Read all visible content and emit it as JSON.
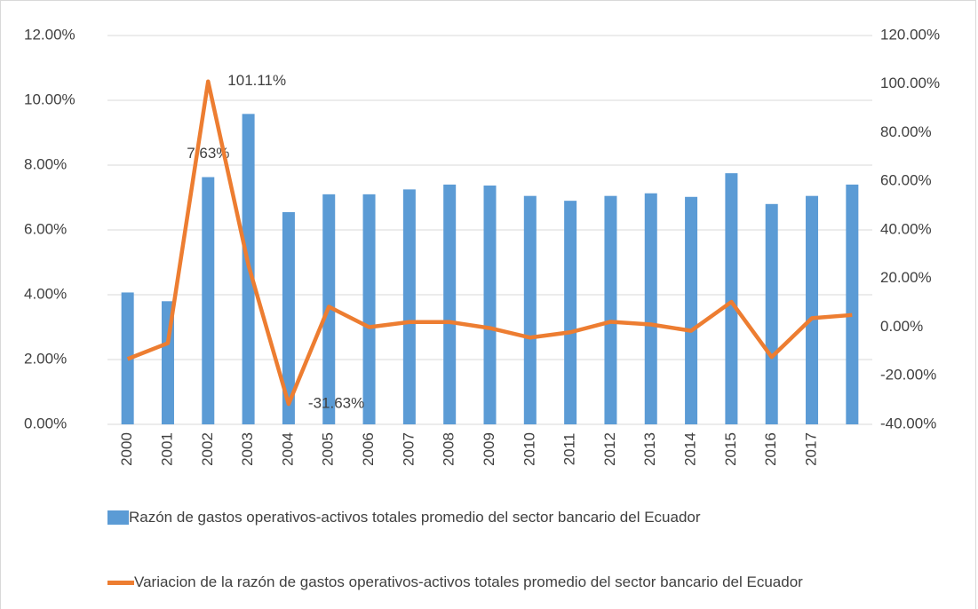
{
  "chart_data": {
    "type": "bar_line",
    "categories": [
      "2000",
      "2001",
      "2002",
      "2003",
      "2004",
      "2005",
      "2006",
      "2007",
      "2008",
      "2009",
      "2010",
      "2011",
      "2012",
      "2013",
      "2014",
      "2015",
      "2016",
      "2017",
      null
    ],
    "series": [
      {
        "name": "Razón de gastos operativos-activos totales promedio del sector bancario del Ecuador",
        "type": "bar",
        "color": "#5b9bd5",
        "values": [
          4.07,
          3.8,
          7.63,
          9.58,
          6.55,
          7.1,
          7.1,
          7.25,
          7.4,
          7.37,
          7.05,
          6.9,
          7.05,
          7.13,
          7.02,
          7.75,
          6.8,
          7.05,
          7.4
        ],
        "value_labels": [
          null,
          null,
          "7.63%",
          null,
          null,
          null,
          null,
          null,
          null,
          null,
          null,
          null,
          null,
          null,
          null,
          null,
          null,
          null,
          null
        ]
      },
      {
        "name": "Variacion de la razón de gastos operativos-activos totales promedio del sector bancario del Ecuador",
        "type": "line",
        "axis": "y2",
        "color": "#ed7d31",
        "values": [
          -13.1,
          -6.6,
          101.11,
          25.6,
          -31.63,
          8.4,
          0,
          2.1,
          2.1,
          -0.4,
          -4.3,
          -2.1,
          2.2,
          1.1,
          -1.5,
          10.4,
          -12.3,
          3.7,
          5.0
        ],
        "value_labels": [
          null,
          null,
          "101.11%",
          null,
          "-31.63%",
          null,
          null,
          null,
          null,
          null,
          null,
          null,
          null,
          null,
          null,
          null,
          null,
          null,
          null
        ]
      }
    ],
    "ylim": [
      0,
      12
    ],
    "yticks": [
      {
        "value": 0,
        "label": "0.00%"
      },
      {
        "value": 2,
        "label": "2.00%"
      },
      {
        "value": 4,
        "label": "4.00%"
      },
      {
        "value": 6,
        "label": "6.00%"
      },
      {
        "value": 8,
        "label": "8.00%"
      },
      {
        "value": 10,
        "label": "10.00%"
      },
      {
        "value": 12,
        "label": "12.00%"
      }
    ],
    "y2lim": [
      -40,
      120
    ],
    "y2ticks": [
      {
        "value": -40,
        "label": "-40.00%"
      },
      {
        "value": -20,
        "label": "-20.00%"
      },
      {
        "value": 0,
        "label": "0.00%"
      },
      {
        "value": 20,
        "label": "20.00%"
      },
      {
        "value": 40,
        "label": "40.00%"
      },
      {
        "value": 60,
        "label": "60.00%"
      },
      {
        "value": 80,
        "label": "80.00%"
      },
      {
        "value": 100,
        "label": "100.00%"
      },
      {
        "value": 120,
        "label": "120.00%"
      }
    ],
    "grid": true,
    "legend": "bottom"
  }
}
